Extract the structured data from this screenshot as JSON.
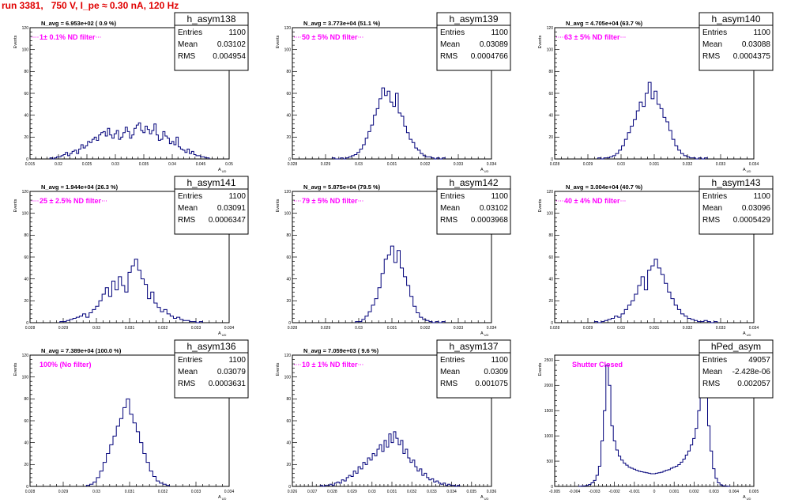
{
  "title": "run 3381,   750 V, I_pe ≈ 0.30 nA, 120 Hz",
  "chart_data": [
    {
      "type": "histogram",
      "name": "h_asym138",
      "entries": "1100",
      "mean": "0.03102",
      "rms": "0.004954",
      "navg": "N_avg = 6.953e+02 ( 0.9 %)",
      "filter": "1± 0.1% ND filter",
      "ylabel": "Events",
      "xlabel": "A_UD",
      "xlim": [
        0.015,
        0.05
      ],
      "ylim": [
        0,
        120
      ],
      "xticks": [
        "0.015",
        "0.02",
        "0.025",
        "0.03",
        "0.035",
        "0.04",
        "0.045",
        "0.05"
      ],
      "yticks": [
        "0",
        "20",
        "40",
        "60",
        "80",
        "100",
        "120"
      ],
      "xmin": 0.0185,
      "xmax": 0.0465,
      "values": [
        1,
        0,
        1,
        2,
        2,
        3,
        4,
        6,
        3,
        5,
        7,
        8,
        5,
        9,
        13,
        10,
        12,
        16,
        15,
        18,
        20,
        17,
        22,
        24,
        25,
        21,
        28,
        22,
        19,
        23,
        26,
        18,
        20,
        24,
        29,
        25,
        19,
        22,
        28,
        31,
        33,
        26,
        24,
        30,
        27,
        23,
        26,
        32,
        22,
        17,
        18,
        25,
        21,
        19,
        14,
        16,
        13,
        20,
        11,
        9,
        8,
        6,
        9,
        5,
        7,
        4,
        3,
        3,
        2,
        2,
        1,
        1
      ]
    },
    {
      "type": "histogram",
      "name": "h_asym139",
      "entries": "1100",
      "mean": "0.03089",
      "rms": "0.0004766",
      "navg": "N_avg = 3.773e+04 (51.1 %)",
      "filter": "50 ± 5% ND filter",
      "ylabel": "Events",
      "xlabel": "A_UD",
      "xlim": [
        0.028,
        0.034
      ],
      "ylim": [
        0,
        120
      ],
      "xticks": [
        "0.028",
        "0.029",
        "0.03",
        "0.031",
        "0.032",
        "0.033",
        "0.034"
      ],
      "yticks": [
        "0",
        "20",
        "40",
        "60",
        "80",
        "100",
        "120"
      ],
      "xmin": 0.0292,
      "xmax": 0.0326,
      "values": [
        1,
        0,
        0,
        1,
        0,
        1,
        2,
        3,
        4,
        6,
        9,
        13,
        19,
        25,
        31,
        40,
        46,
        55,
        65,
        58,
        62,
        52,
        48,
        60,
        42,
        39,
        30,
        24,
        18,
        15,
        10,
        8,
        5,
        3,
        2,
        2,
        1,
        0,
        1,
        0,
        1
      ]
    },
    {
      "type": "histogram",
      "name": "h_asym140",
      "entries": "1100",
      "mean": "0.03088",
      "rms": "0.0004375",
      "navg": "N_avg = 4.705e+04 (63.7 %)",
      "filter": "63 ± 5% ND filter",
      "ylabel": "Events",
      "xlabel": "A_UD",
      "xlim": [
        0.028,
        0.034
      ],
      "ylim": [
        0,
        120
      ],
      "xticks": [
        "0.028",
        "0.029",
        "0.03",
        "0.031",
        "0.032",
        "0.033",
        "0.034"
      ],
      "yticks": [
        "0",
        "20",
        "40",
        "60",
        "80",
        "100",
        "120"
      ],
      "xmin": 0.0293,
      "xmax": 0.0326,
      "values": [
        1,
        0,
        1,
        1,
        2,
        3,
        5,
        8,
        12,
        18,
        24,
        30,
        36,
        44,
        52,
        48,
        60,
        70,
        55,
        62,
        50,
        46,
        38,
        34,
        26,
        18,
        12,
        8,
        5,
        3,
        2,
        1,
        1,
        0,
        1,
        0,
        1
      ]
    },
    {
      "type": "histogram",
      "name": "h_asym141",
      "entries": "1100",
      "mean": "0.03091",
      "rms": "0.0006347",
      "navg": "N_avg = 1.944e+04 (26.3 %)",
      "filter": "25 ± 2.5% ND filter",
      "ylabel": "Events",
      "xlabel": "A_UD",
      "xlim": [
        0.028,
        0.034
      ],
      "ylim": [
        0,
        120
      ],
      "xticks": [
        "0.028",
        "0.029",
        "0.03",
        "0.031",
        "0.032",
        "0.033",
        "0.034"
      ],
      "yticks": [
        "0",
        "20",
        "40",
        "60",
        "80",
        "100",
        "120"
      ],
      "xmin": 0.0289,
      "xmax": 0.0332,
      "values": [
        1,
        1,
        2,
        3,
        4,
        5,
        6,
        8,
        5,
        9,
        12,
        15,
        20,
        26,
        32,
        24,
        38,
        30,
        42,
        34,
        28,
        46,
        52,
        58,
        48,
        40,
        35,
        22,
        28,
        18,
        14,
        10,
        12,
        8,
        6,
        4,
        5,
        3,
        2,
        2,
        1,
        1,
        0,
        1
      ]
    },
    {
      "type": "histogram",
      "name": "h_asym142",
      "entries": "1100",
      "mean": "0.03102",
      "rms": "0.0003968",
      "navg": "N_avg = 5.875e+04 (79.5 %)",
      "filter": "79 ± 5% ND filter",
      "ylabel": "Events",
      "xlabel": "A_UD",
      "xlim": [
        0.028,
        0.034
      ],
      "ylim": [
        0,
        120
      ],
      "xticks": [
        "0.028",
        "0.029",
        "0.03",
        "0.031",
        "0.032",
        "0.033",
        "0.034"
      ],
      "yticks": [
        "0",
        "20",
        "40",
        "60",
        "80",
        "100",
        "120"
      ],
      "xmin": 0.0299,
      "xmax": 0.0326,
      "values": [
        1,
        1,
        3,
        6,
        10,
        16,
        22,
        32,
        45,
        58,
        62,
        70,
        55,
        66,
        50,
        42,
        34,
        24,
        15,
        9,
        5,
        3,
        2,
        1,
        0,
        1,
        0,
        1
      ]
    },
    {
      "type": "histogram",
      "name": "h_asym143",
      "entries": "1100",
      "mean": "0.03096",
      "rms": "0.0005429",
      "navg": "N_avg = 3.004e+04 (40.7 %)",
      "filter": "40 ± 4% ND filter",
      "ylabel": "Events",
      "xlabel": "A_UD",
      "xlim": [
        0.028,
        0.034
      ],
      "ylim": [
        0,
        120
      ],
      "xticks": [
        "0.028",
        "0.029",
        "0.03",
        "0.031",
        "0.032",
        "0.033",
        "0.034"
      ],
      "yticks": [
        "0",
        "20",
        "40",
        "60",
        "80",
        "100",
        "120"
      ],
      "xmin": 0.0292,
      "xmax": 0.0329,
      "values": [
        1,
        0,
        1,
        2,
        3,
        4,
        6,
        5,
        8,
        12,
        16,
        20,
        26,
        34,
        42,
        30,
        48,
        52,
        58,
        50,
        44,
        36,
        28,
        22,
        16,
        12,
        8,
        6,
        4,
        3,
        2,
        1,
        1,
        2,
        1,
        0,
        1
      ]
    },
    {
      "type": "histogram",
      "name": "h_asym136",
      "entries": "1100",
      "mean": "0.03079",
      "rms": "0.0003631",
      "navg": "N_avg = 7.389e+04 (100.0 %)",
      "filter": "100% (No filter)",
      "ylabel": "Events",
      "xlabel": "A_UD",
      "xlim": [
        0.028,
        0.034
      ],
      "ylim": [
        0,
        120
      ],
      "xticks": [
        "0.028",
        "0.029",
        "0.03",
        "0.031",
        "0.032",
        "0.033",
        "0.034"
      ],
      "yticks": [
        "0",
        "20",
        "40",
        "60",
        "80",
        "100",
        "120"
      ],
      "xmin": 0.0297,
      "xmax": 0.0322,
      "values": [
        1,
        2,
        4,
        8,
        14,
        22,
        30,
        38,
        46,
        55,
        62,
        72,
        80,
        66,
        58,
        50,
        40,
        30,
        22,
        14,
        9,
        5,
        3,
        2,
        1
      ]
    },
    {
      "type": "histogram",
      "name": "h_asym137",
      "entries": "1100",
      "mean": "0.0309",
      "rms": "0.001075",
      "navg": "N_avg = 7.059e+03 ( 9.6 %)",
      "filter": "10 ± 1% ND filter",
      "ylabel": "Events",
      "xlabel": "A_UD",
      "xlim": [
        0.026,
        0.036
      ],
      "ylim": [
        0,
        120
      ],
      "xticks": [
        "0.026",
        "0.027",
        "0.028",
        "0.029",
        "0.03",
        "0.031",
        "0.032",
        "0.033",
        "0.034",
        "0.035",
        "0.036"
      ],
      "yticks": [
        "0",
        "20",
        "40",
        "60",
        "80",
        "100",
        "120"
      ],
      "xmin": 0.0274,
      "xmax": 0.0344,
      "values": [
        1,
        0,
        1,
        1,
        2,
        1,
        3,
        4,
        3,
        6,
        5,
        8,
        10,
        9,
        14,
        12,
        18,
        16,
        22,
        20,
        26,
        24,
        30,
        28,
        34,
        38,
        32,
        42,
        36,
        48,
        40,
        50,
        44,
        38,
        42,
        30,
        34,
        26,
        22,
        24,
        18,
        14,
        16,
        10,
        12,
        8,
        6,
        7,
        4,
        5,
        3,
        2,
        3,
        1,
        2,
        1,
        1,
        0,
        1
      ]
    },
    {
      "type": "histogram",
      "name": "hPed_asym",
      "entries": "49057",
      "mean": "-2.428e-06",
      "rms": "0.002057",
      "navg": "",
      "filter": "Shutter Closed",
      "ylabel": "Events",
      "xlabel": "A_UD",
      "xlim": [
        -0.005,
        0.005
      ],
      "ylim": [
        0,
        2600
      ],
      "xticks": [
        "-0.005",
        "-0.004",
        "-0.003",
        "-0.002",
        "-0.001",
        "0",
        "0.001",
        "0.002",
        "0.003",
        "0.004",
        "0.005"
      ],
      "yticks": [
        "0",
        "500",
        "1000",
        "1500",
        "2000",
        "2500"
      ],
      "xmin": -0.0038,
      "xmax": 0.0038,
      "values": [
        2,
        5,
        10,
        20,
        40,
        70,
        120,
        220,
        400,
        900,
        1500,
        2400,
        2000,
        1200,
        900,
        720,
        600,
        520,
        460,
        420,
        380,
        360,
        340,
        320,
        300,
        290,
        280,
        270,
        260,
        250,
        250,
        260,
        270,
        280,
        300,
        320,
        330,
        360,
        380,
        400,
        430,
        480,
        540,
        620,
        700,
        820,
        950,
        1150,
        1500,
        2000,
        2300,
        1900,
        1200,
        700,
        350,
        160,
        70,
        30,
        12,
        5,
        2
      ]
    }
  ]
}
